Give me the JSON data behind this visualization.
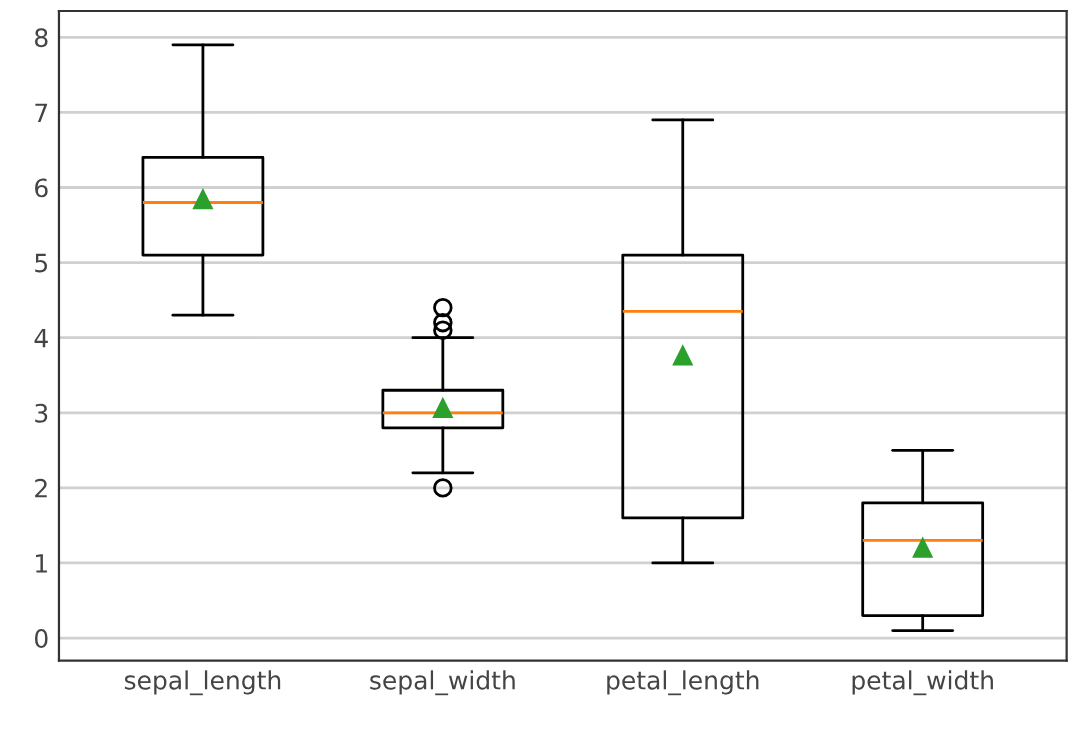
{
  "chart_data": {
    "type": "box",
    "categories": [
      "sepal_length",
      "sepal_width",
      "petal_length",
      "petal_width"
    ],
    "boxes": [
      {
        "low": 4.3,
        "q1": 5.1,
        "median": 5.8,
        "q3": 6.4,
        "high": 7.9,
        "mean": 5.84
      },
      {
        "low": 2.2,
        "q1": 2.8,
        "median": 3.0,
        "q3": 3.3,
        "high": 4.0,
        "mean": 3.06,
        "outliers": [
          4.4,
          4.1,
          4.2,
          2.0
        ]
      },
      {
        "low": 1.0,
        "q1": 1.6,
        "median": 4.35,
        "q3": 5.1,
        "high": 6.9,
        "mean": 3.76
      },
      {
        "low": 0.1,
        "q1": 0.3,
        "median": 1.3,
        "q3": 1.8,
        "high": 2.5,
        "mean": 1.2
      }
    ],
    "ylim": [
      -0.3,
      8.35
    ],
    "yticks": [
      0,
      1,
      2,
      3,
      4,
      5,
      6,
      7,
      8
    ],
    "grid": "y"
  }
}
